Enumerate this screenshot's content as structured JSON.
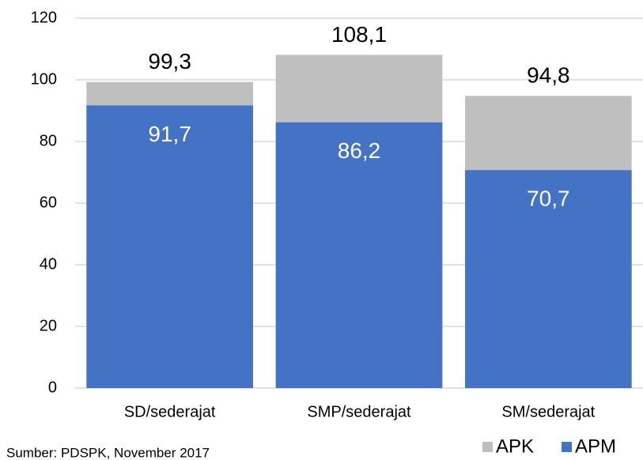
{
  "chart_data": {
    "type": "bar",
    "barmode": "overlay",
    "categories": [
      "SD/sederajat",
      "SMP/sederajat",
      "SM/sederajat"
    ],
    "series": [
      {
        "name": "APK",
        "color": "#bfbfbf",
        "values": [
          99.3,
          108.1,
          94.8
        ],
        "value_labels": [
          "99,3",
          "108,1",
          "94,8"
        ]
      },
      {
        "name": "APM",
        "color": "#4472c4",
        "values": [
          91.7,
          86.2,
          70.7
        ],
        "value_labels": [
          "91,7",
          "86,2",
          "70,7"
        ]
      }
    ],
    "ylim": [
      0,
      120
    ],
    "yticks": [
      0,
      20,
      40,
      60,
      80,
      100,
      120
    ],
    "grid": true,
    "legend": "bottom-right",
    "note": "Sumber: PDSPK, November 2017"
  }
}
